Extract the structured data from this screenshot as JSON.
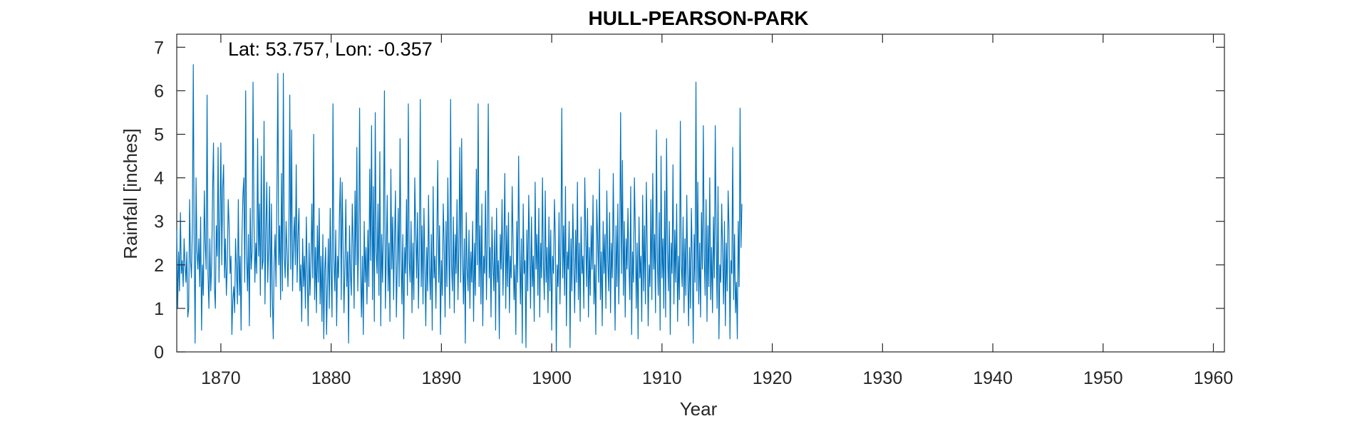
{
  "chart_data": {
    "type": "line",
    "title": "HULL-PEARSON-PARK",
    "annotation": "Lat: 53.757, Lon: -0.357",
    "xlabel": "Year",
    "ylabel": "Rainfall [inches]",
    "xlim": [
      1866,
      1961
    ],
    "ylim": [
      0,
      7.3
    ],
    "xticks": [
      1870,
      1880,
      1890,
      1900,
      1910,
      1920,
      1930,
      1940,
      1950,
      1960
    ],
    "yticks": [
      0,
      1,
      2,
      3,
      4,
      5,
      6,
      7
    ],
    "grid": false,
    "line_color": "#0072BD",
    "series": [
      {
        "x_start": 1866.0,
        "x_step": 0.08333,
        "values": [
          2.8,
          1.0,
          2.3,
          1.4,
          3.2,
          1.8,
          2.1,
          1.5,
          2.6,
          2.0,
          1.6,
          2.3,
          0.8,
          1.0,
          3.5,
          2.1,
          1.7,
          2.9,
          6.6,
          2.4,
          0.2,
          4.0,
          2.3,
          1.9,
          2.6,
          1.5,
          3.1,
          0.5,
          2.0,
          1.3,
          3.7,
          2.5,
          1.9,
          5.9,
          1.8,
          1.0,
          2.6,
          1.4,
          2.0,
          3.7,
          4.8,
          1.5,
          1.0,
          2.9,
          2.2,
          4.7,
          1.6,
          3.0,
          4.8,
          2.0,
          3.8,
          4.3,
          1.7,
          2.6,
          1.3,
          2.0,
          3.5,
          2.9,
          1.8,
          2.2,
          0.4,
          1.2,
          1.5,
          0.9,
          2.6,
          1.9,
          1.1,
          3.5,
          1.3,
          2.2,
          0.5,
          2.7,
          3.6,
          4.0,
          1.6,
          6.0,
          2.2,
          1.4,
          2.7,
          0.6,
          3.3,
          1.9,
          2.3,
          6.2,
          3.1,
          1.6,
          2.5,
          1.8,
          4.9,
          2.2,
          3.4,
          1.3,
          4.5,
          1.9,
          2.1,
          5.3,
          1.1,
          2.8,
          3.9,
          1.6,
          2.4,
          3.8,
          0.8,
          3.4,
          1.3,
          0.3,
          2.1,
          2.7,
          1.5,
          3.6,
          6.4,
          2.0,
          2.9,
          1.2,
          4.1,
          1.4,
          6.4,
          2.2,
          1.7,
          3.0,
          2.3,
          1.5,
          2.6,
          5.9,
          1.9,
          5.1,
          1.4,
          2.5,
          3.1,
          2.0,
          4.3,
          1.6,
          2.7,
          3.3,
          1.4,
          2.0,
          0.7,
          2.6,
          1.5,
          2.2,
          1.0,
          3.1,
          1.8,
          0.6,
          2.5,
          1.3,
          2.0,
          3.4,
          1.7,
          5.0,
          1.2,
          2.4,
          0.9,
          2.9,
          1.6,
          3.3,
          1.1,
          2.2,
          0.7,
          2.7,
          0.3,
          1.9,
          2.4,
          0.4,
          1.5,
          2.6,
          1.0,
          3.3,
          1.8,
          0.8,
          5.7,
          2.1,
          1.4,
          2.8,
          0.6,
          2.2,
          1.7,
          3.1,
          4.0,
          1.2,
          3.9,
          2.4,
          0.9,
          2.0,
          3.5,
          1.5,
          2.3,
          0.2,
          2.9,
          1.8,
          1.3,
          3.4,
          2.5,
          1.0,
          3.7,
          2.0,
          4.7,
          1.4,
          2.6,
          5.6,
          1.9,
          0.8,
          2.2,
          0.4,
          3.0,
          1.6,
          2.4,
          1.1,
          2.8,
          1.5,
          4.2,
          2.1,
          5.2,
          1.2,
          3.8,
          0.7,
          5.5,
          2.3,
          1.8,
          3.4,
          1.3,
          4.6,
          0.6,
          2.7,
          1.6,
          2.9,
          6.0,
          1.0,
          2.2,
          3.6,
          1.4,
          2.5,
          0.7,
          4.2,
          1.9,
          3.1,
          1.2,
          2.6,
          3.7,
          0.8,
          2.0,
          3.3,
          1.5,
          4.9,
          2.2,
          1.1,
          2.7,
          0.3,
          2.4,
          1.8,
          3.5,
          1.3,
          5.7,
          2.1,
          1.6,
          3.0,
          0.9,
          2.5,
          1.2,
          4.0,
          2.8,
          1.7,
          3.2,
          1.0,
          2.3,
          5.8,
          1.5,
          2.9,
          1.1,
          3.3,
          2.0,
          0.6,
          2.4,
          1.4,
          3.6,
          1.9,
          1.2,
          2.7,
          0.5,
          3.8,
          1.7,
          2.2,
          1.0,
          2.6,
          4.4,
          1.6,
          2.9,
          0.4,
          2.1,
          1.3,
          3.4,
          2.5,
          0.8,
          3.0,
          1.5,
          4.0,
          2.3,
          1.0,
          5.8,
          2.0,
          1.4,
          3.1,
          0.9,
          2.7,
          1.8,
          3.5,
          1.2,
          2.4,
          4.7,
          1.6,
          4.9,
          2.2,
          1.1,
          2.6,
          0.2,
          3.2,
          1.9,
          1.4,
          2.8,
          1.0,
          2.3,
          1.6,
          3.0,
          0.7,
          2.5,
          1.3,
          4.2,
          2.0,
          5.7,
          1.5,
          2.9,
          1.1,
          3.4,
          0.6,
          2.2,
          1.8,
          3.7,
          1.2,
          2.6,
          5.7,
          1.7,
          2.4,
          0.8,
          3.1,
          2.0,
          1.4,
          2.8,
          0.5,
          3.3,
          1.6,
          2.1,
          0.3,
          2.7,
          1.9,
          3.5,
          1.3,
          2.4,
          4.1,
          1.0,
          2.9,
          1.5,
          3.2,
          0.9,
          2.2,
          1.7,
          3.8,
          2.5,
          1.2,
          2.0,
          0.4,
          3.0,
          1.6,
          4.5,
          2.3,
          1.1,
          2.6,
          0.2,
          3.4,
          1.8,
          2.1,
          0.1,
          2.8,
          1.4,
          3.6,
          2.4,
          1.0,
          3.1,
          1.5,
          2.2,
          0.7,
          3.9,
          1.9,
          2.7,
          1.3,
          3.3,
          0.8,
          2.5,
          1.7,
          4.0,
          2.0,
          1.2,
          3.7,
          1.6,
          2.4,
          0.9,
          3.1,
          1.4,
          2.8,
          0.5,
          2.2,
          1.8,
          3.5,
          2.6,
          0.0,
          2.0,
          1.5,
          3.2,
          1.1,
          2.4,
          5.6,
          1.7,
          2.9,
          1.3,
          3.8,
          0.6,
          2.3,
          1.9,
          3.0,
          0.1,
          2.6,
          1.4,
          3.4,
          2.1,
          0.9,
          2.8,
          1.6,
          3.9,
          1.2,
          2.5,
          0.7,
          3.1,
          1.8,
          2.2,
          1.0,
          4.0,
          2.7,
          1.5,
          3.3,
          0.8,
          2.4,
          1.3,
          2.9,
          1.9,
          3.6,
          1.1,
          2.0,
          0.4,
          3.5,
          2.6,
          1.6,
          4.2,
          1.2,
          2.3,
          0.6,
          3.0,
          1.8,
          2.7,
          1.0,
          3.7,
          2.1,
          1.4,
          3.2,
          0.9,
          2.5,
          1.7,
          4.1,
          2.2,
          0.5,
          2.9,
          1.5,
          3.4,
          1.1,
          2.4,
          5.5,
          1.8,
          4.4,
          1.3,
          3.0,
          0.8,
          2.6,
          1.9,
          3.3,
          2.0,
          1.2,
          3.8,
          0.4,
          2.3,
          1.6,
          4.0,
          2.8,
          1.0,
          2.5,
          0.3,
          3.1,
          1.7,
          2.2,
          0.7,
          3.6,
          1.4,
          2.9,
          1.1,
          3.9,
          2.4,
          0.6,
          2.0,
          1.5,
          3.5,
          1.2,
          4.1,
          1.9,
          2.7,
          0.9,
          5.1,
          2.1,
          1.3,
          3.2,
          0.5,
          4.5,
          1.7,
          2.6,
          1.0,
          3.7,
          0.8,
          4.9,
          2.3,
          1.4,
          3.0,
          0.4,
          2.5,
          1.8,
          4.3,
          1.1,
          2.8,
          1.6,
          3.4,
          0.7,
          2.2,
          1.2,
          5.3,
          2.0,
          1.5,
          3.1,
          0.9,
          2.6,
          1.3,
          3.6,
          1.8,
          0.6,
          2.4,
          1.0,
          3.3,
          2.1,
          0.2,
          2.7,
          1.6,
          6.2,
          1.4,
          3.9,
          1.1,
          2.5,
          0.8,
          3.2,
          1.9,
          5.2,
          2.2,
          1.3,
          3.5,
          0.7,
          2.9,
          1.5,
          4.0,
          1.2,
          2.4,
          0.9,
          3.1,
          1.7,
          5.2,
          2.6,
          1.0,
          3.8,
          0.3,
          2.0,
          1.6,
          3.4,
          2.3,
          1.1,
          3.0,
          0.6,
          2.5,
          1.4,
          3.7,
          2.8,
          0.3,
          2.1,
          1.8,
          4.7,
          1.2,
          2.7,
          0.9,
          1.6,
          0.3,
          3.0,
          1.5,
          5.6,
          2.4,
          3.4
        ]
      }
    ]
  }
}
